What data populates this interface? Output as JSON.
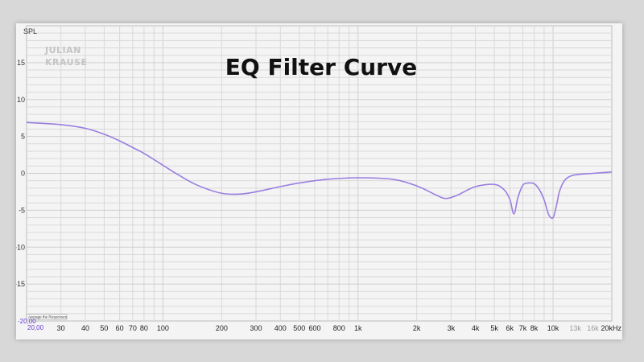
{
  "chart_data": {
    "type": "line",
    "title": "EQ Filter Curve",
    "ylabel": "SPL",
    "xscale": "log",
    "xlim": [
      20,
      20000
    ],
    "ylim": [
      -20,
      20
    ],
    "y_ticks": [
      15,
      10,
      5,
      0,
      -5,
      -10,
      -15
    ],
    "y_tick_labels": [
      "15",
      "10",
      "5",
      "0",
      "-5",
      "-10",
      "-15"
    ],
    "x_ticks": [
      30,
      40,
      50,
      60,
      70,
      80,
      100,
      200,
      300,
      400,
      500,
      600,
      800,
      1000,
      2000,
      3000,
      4000,
      5000,
      6000,
      7000,
      8000,
      10000,
      13000,
      16000,
      20000
    ],
    "x_tick_labels": [
      "30",
      "40",
      "50",
      "60",
      "70",
      "80",
      "100",
      "200",
      "300",
      "400",
      "500",
      "600",
      "800",
      "1k",
      "2k",
      "3k",
      "4k",
      "5k",
      "6k",
      "7k",
      "8k",
      "10k",
      "13k",
      "16k",
      "20kHz"
    ],
    "faded_x_ticks": [
      "13k",
      "16k"
    ],
    "min_labels": [
      "-20,00",
      "20,00"
    ],
    "legend": "Average the Responses",
    "logo": [
      "JULIAN",
      "KRAUSE"
    ],
    "grid": true,
    "series": [
      {
        "color": "#9a7ee0",
        "x": [
          20,
          30,
          40,
          50,
          60,
          70,
          80,
          100,
          120,
          150,
          200,
          250,
          300,
          400,
          500,
          700,
          1000,
          1500,
          2000,
          2500,
          2800,
          3200,
          4000,
          5000,
          5600,
          6000,
          6300,
          6600,
          7000,
          7500,
          8000,
          8500,
          9000,
          9500,
          10000,
          10400,
          10800,
          11500,
          12500,
          14000,
          16000,
          18000,
          20000
        ],
        "y": [
          6.9,
          6.6,
          6.1,
          5.3,
          4.4,
          3.5,
          2.7,
          1.1,
          -0.2,
          -1.6,
          -2.7,
          -2.8,
          -2.5,
          -1.8,
          -1.3,
          -0.8,
          -0.6,
          -0.8,
          -1.7,
          -2.9,
          -3.4,
          -3.0,
          -1.8,
          -1.5,
          -2.2,
          -3.5,
          -5.5,
          -3.3,
          -1.6,
          -1.3,
          -1.4,
          -2.2,
          -3.6,
          -5.6,
          -6.0,
          -4.4,
          -2.4,
          -0.9,
          -0.3,
          -0.1,
          0.0,
          0.1,
          0.2
        ]
      }
    ]
  }
}
